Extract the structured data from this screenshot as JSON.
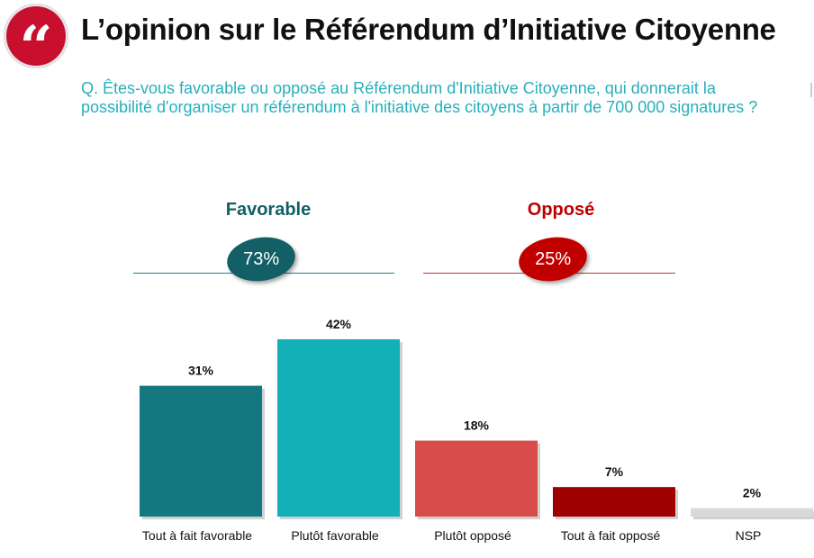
{
  "header": {
    "logo_icon": "quote-marks-icon",
    "logo_glyph": "“",
    "title": "L’opinion sur le Référendum d’Initiative Citoyenne",
    "question": "Q. Êtes-vous favorable ou opposé au Référendum d'Initiative Citoyenne, qui donnerait la possibilité d'organiser un référendum à l'initiative des citoyens à partir de 700 000 signatures ?"
  },
  "groups": {
    "favorable": {
      "label": "Favorable",
      "value": "73%",
      "color": "#125f66"
    },
    "oppose": {
      "label": "Opposé",
      "value": "25%",
      "color": "#c00000"
    }
  },
  "chart_data": {
    "type": "bar",
    "categories": [
      "Tout à fait favorable",
      "Plutôt favorable",
      "Plutôt opposé",
      "Tout à fait opposé",
      "NSP"
    ],
    "values": [
      31,
      42,
      18,
      7,
      2
    ],
    "value_labels": [
      "31%",
      "42%",
      "18%",
      "7%",
      "2%"
    ],
    "colors": [
      "#147880",
      "#14b0b8",
      "#d94c4c",
      "#9e0000",
      "#d9d9d9"
    ],
    "ylim": [
      0,
      42
    ],
    "grid": false
  }
}
